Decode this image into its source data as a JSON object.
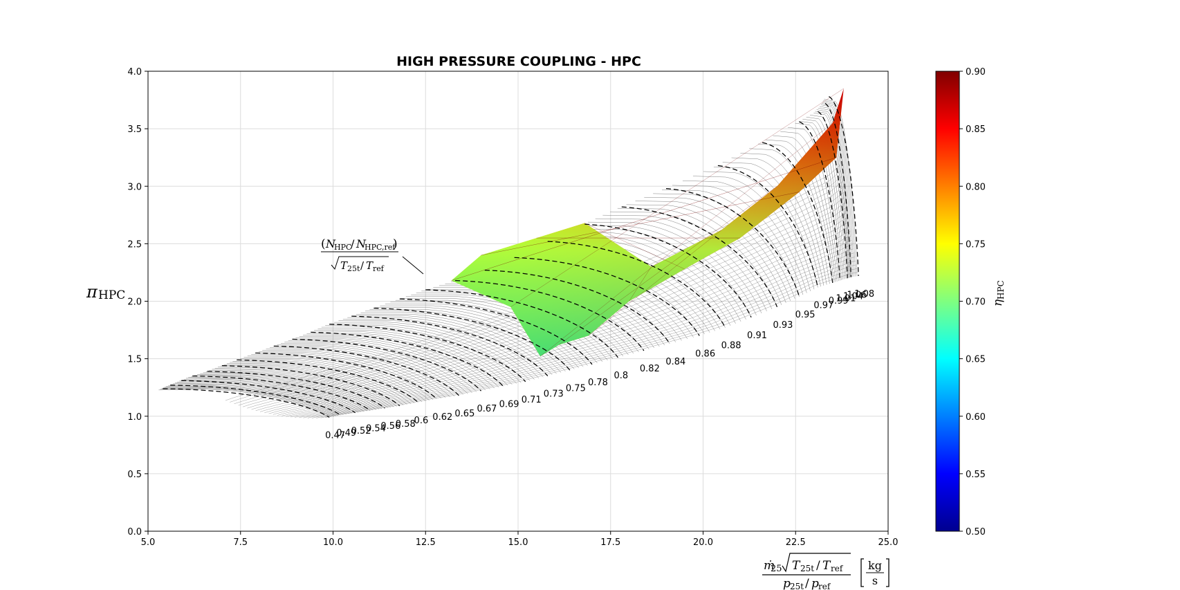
{
  "chart_data": {
    "type": "line",
    "title": "HIGH PRESSURE COUPLING - HPC",
    "xlabel": {
      "numerator_symbol": "ṁ",
      "numerator_subscript": "25",
      "numerator_root": "T",
      "numerator_root_sub": "25t",
      "numerator_root_slash": "/",
      "numerator_root_ref": "T",
      "numerator_root_ref_sub": "ref",
      "denominator_p": "p",
      "denominator_p_sub": "25t",
      "denominator_slash": "/",
      "denominator_pref": "p",
      "denominator_pref_sub": "ref",
      "unit_top": "kg",
      "unit_bottom": "s"
    },
    "ylabel": {
      "symbol": "π",
      "subscript": "HPC"
    },
    "speed_annotation": {
      "num_open": "(",
      "num_n": "N",
      "num_n_sub": "HPC",
      "num_slash": "/",
      "num_nref": "N",
      "num_nref_sub": "HPC,ref",
      "num_close": ")",
      "den_t": "T",
      "den_t_sub": "25t",
      "den_slash": "/",
      "den_tref": "T",
      "den_tref_sub": "ref"
    },
    "xlim": [
      5.0,
      25.0
    ],
    "ylim": [
      0.0,
      4.0
    ],
    "x_ticks": [
      "5.0",
      "7.5",
      "10.0",
      "12.5",
      "15.0",
      "17.5",
      "20.0",
      "22.5",
      "25.0"
    ],
    "y_ticks": [
      "0.0",
      "0.5",
      "1.0",
      "1.5",
      "2.0",
      "2.5",
      "3.0",
      "3.5",
      "4.0"
    ],
    "grid": true,
    "colorbar": {
      "label_symbol": "η",
      "label_subscript": "HPC",
      "range": [
        0.5,
        0.9
      ],
      "ticks": [
        "0.50",
        "0.55",
        "0.60",
        "0.65",
        "0.70",
        "0.75",
        "0.80",
        "0.85",
        "0.90"
      ],
      "colormap": "jet"
    },
    "speed_lines": [
      {
        "label": "0.47",
        "surge": [
          5.4,
          1.24
        ],
        "choke": [
          9.9,
          0.99
        ]
      },
      {
        "label": "0.49",
        "surge": [
          5.6,
          1.27
        ],
        "choke": [
          10.2,
          1.01
        ]
      },
      {
        "label": "0.52",
        "surge": [
          5.9,
          1.31
        ],
        "choke": [
          10.6,
          1.03
        ]
      },
      {
        "label": "0.54",
        "surge": [
          6.2,
          1.35
        ],
        "choke": [
          11.0,
          1.05
        ]
      },
      {
        "label": "0.56",
        "surge": [
          6.6,
          1.39
        ],
        "choke": [
          11.4,
          1.07
        ]
      },
      {
        "label": "0.58",
        "surge": [
          7.0,
          1.44
        ],
        "choke": [
          11.8,
          1.09
        ]
      },
      {
        "label": "0.6",
        "surge": [
          7.4,
          1.49
        ],
        "choke": [
          12.3,
          1.12
        ]
      },
      {
        "label": "0.62",
        "surge": [
          7.9,
          1.55
        ],
        "choke": [
          12.8,
          1.15
        ]
      },
      {
        "label": "0.65",
        "surge": [
          8.4,
          1.61
        ],
        "choke": [
          13.4,
          1.18
        ]
      },
      {
        "label": "0.67",
        "surge": [
          8.9,
          1.67
        ],
        "choke": [
          14.0,
          1.22
        ]
      },
      {
        "label": "0.69",
        "surge": [
          9.4,
          1.73
        ],
        "choke": [
          14.6,
          1.26
        ]
      },
      {
        "label": "0.71",
        "surge": [
          9.9,
          1.8
        ],
        "choke": [
          15.2,
          1.3
        ]
      },
      {
        "label": "0.73",
        "surge": [
          10.5,
          1.87
        ],
        "choke": [
          15.8,
          1.35
        ]
      },
      {
        "label": "0.75",
        "surge": [
          11.1,
          1.94
        ],
        "choke": [
          16.4,
          1.4
        ]
      },
      {
        "label": "0.78",
        "surge": [
          11.8,
          2.02
        ],
        "choke": [
          17.0,
          1.45
        ]
      },
      {
        "label": "0.8",
        "surge": [
          12.5,
          2.1
        ],
        "choke": [
          17.7,
          1.51
        ]
      },
      {
        "label": "0.82",
        "surge": [
          13.3,
          2.18
        ],
        "choke": [
          18.4,
          1.57
        ]
      },
      {
        "label": "0.84",
        "surge": [
          14.1,
          2.27
        ],
        "choke": [
          19.1,
          1.63
        ]
      },
      {
        "label": "0.86",
        "surge": [
          14.9,
          2.38
        ],
        "choke": [
          19.9,
          1.7
        ]
      },
      {
        "label": "0.88",
        "surge": [
          15.8,
          2.52
        ],
        "choke": [
          20.6,
          1.77
        ]
      },
      {
        "label": "0.91",
        "surge": [
          16.8,
          2.67
        ],
        "choke": [
          21.3,
          1.86
        ]
      },
      {
        "label": "0.93",
        "surge": [
          17.8,
          2.82
        ],
        "choke": [
          22.0,
          1.95
        ]
      },
      {
        "label": "0.95",
        "surge": [
          19.0,
          2.98
        ],
        "choke": [
          22.6,
          2.04
        ]
      },
      {
        "label": "0.97",
        "surge": [
          20.4,
          3.18
        ],
        "choke": [
          23.1,
          2.12
        ]
      },
      {
        "label": "0.99",
        "surge": [
          21.6,
          3.38
        ],
        "choke": [
          23.5,
          2.16
        ]
      },
      {
        "label": "1.01",
        "surge": [
          22.6,
          3.56
        ],
        "choke": [
          23.7,
          2.18
        ]
      },
      {
        "label": "1.04",
        "surge": [
          23.1,
          3.65
        ],
        "choke": [
          23.9,
          2.2
        ]
      },
      {
        "label": "1.06",
        "surge": [
          23.3,
          3.72
        ],
        "choke": [
          24.0,
          2.21
        ]
      },
      {
        "label": "1.08",
        "surge": [
          23.4,
          3.78
        ],
        "choke": [
          24.2,
          2.22
        ]
      }
    ],
    "efficiency_region": [
      {
        "x": 13.2,
        "y": 2.18,
        "eta": 0.76
      },
      {
        "x": 14.0,
        "y": 2.4,
        "eta": 0.77
      },
      {
        "x": 15.5,
        "y": 2.55,
        "eta": 0.79
      },
      {
        "x": 16.8,
        "y": 2.68,
        "eta": 0.82
      },
      {
        "x": 18.6,
        "y": 2.3,
        "eta": 0.86
      },
      {
        "x": 20.5,
        "y": 2.62,
        "eta": 0.87
      },
      {
        "x": 22.0,
        "y": 3.0,
        "eta": 0.87
      },
      {
        "x": 23.5,
        "y": 3.55,
        "eta": 0.85
      },
      {
        "x": 23.8,
        "y": 3.85,
        "eta": 0.82
      },
      {
        "x": 23.6,
        "y": 3.25,
        "eta": 0.86
      },
      {
        "x": 22.6,
        "y": 2.95,
        "eta": 0.87
      },
      {
        "x": 21.0,
        "y": 2.55,
        "eta": 0.87
      },
      {
        "x": 19.5,
        "y": 2.28,
        "eta": 0.85
      },
      {
        "x": 18.0,
        "y": 2.0,
        "eta": 0.81
      },
      {
        "x": 16.9,
        "y": 1.7,
        "eta": 0.76
      },
      {
        "x": 16.1,
        "y": 1.62,
        "eta": 0.72
      },
      {
        "x": 15.6,
        "y": 1.52,
        "eta": 0.7
      },
      {
        "x": 14.8,
        "y": 1.95,
        "eta": 0.74
      }
    ]
  }
}
